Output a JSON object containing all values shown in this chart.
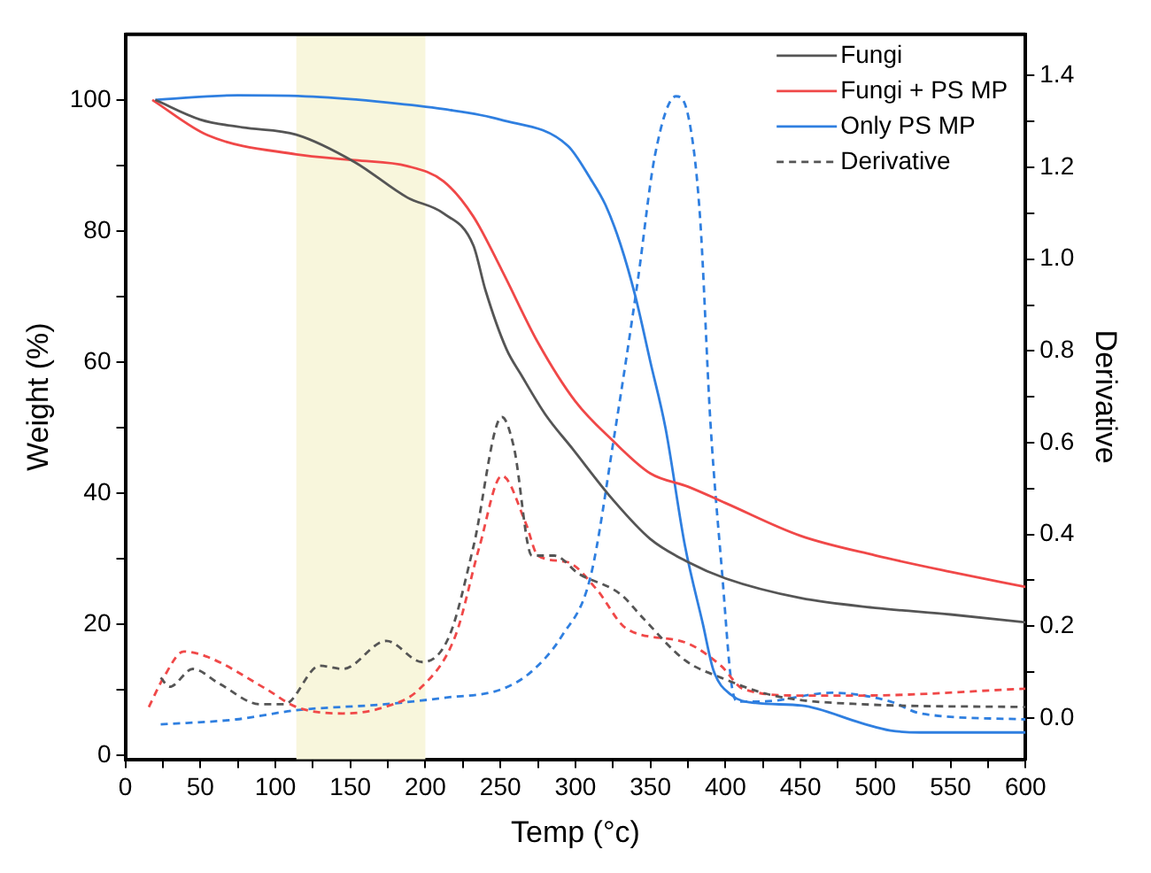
{
  "chart_data": {
    "type": "line",
    "xlabel": "Temp (°c)",
    "ylabel": "Weight (%)",
    "y2label": "Derivative",
    "xlim": [
      0,
      600
    ],
    "ylim": [
      -0.6,
      110
    ],
    "y2lim": [
      -0.09,
      1.49
    ],
    "xticks": [
      0,
      {
        "value": 25,
        "label": null
      },
      50,
      {
        "value": 75,
        "label": null
      },
      100,
      {
        "value": 125,
        "label": null
      },
      150,
      {
        "value": 175,
        "label": null
      },
      200,
      {
        "value": 225,
        "label": null
      },
      250,
      {
        "value": 275,
        "label": null
      },
      300,
      {
        "value": 325,
        "label": null
      },
      350,
      {
        "value": 375,
        "label": null
      },
      400,
      {
        "value": 425,
        "label": null
      },
      450,
      {
        "value": 475,
        "label": null
      },
      500,
      {
        "value": 525,
        "label": null
      },
      550,
      {
        "value": 575,
        "label": null
      },
      600
    ],
    "yticks": [
      0,
      {
        "value": 10,
        "label": null
      },
      20,
      {
        "value": 30,
        "label": null
      },
      40,
      {
        "value": 50,
        "label": null
      },
      60,
      {
        "value": 70,
        "label": null
      },
      80,
      {
        "value": 90,
        "label": null
      },
      100
    ],
    "y2ticks": [
      {
        "value": 0,
        "label": "0.0"
      },
      {
        "value": 0.1,
        "label": null
      },
      0.2,
      {
        "value": 0.3,
        "label": null
      },
      0.4,
      {
        "value": 0.5,
        "label": null
      },
      0.6,
      {
        "value": 0.7,
        "label": null
      },
      0.8,
      {
        "value": 0.9,
        "label": null
      },
      {
        "value": 1,
        "label": "1.0"
      },
      {
        "value": 1.1,
        "label": null
      },
      1.2,
      {
        "value": 1.3,
        "label": null
      },
      1.4
    ],
    "grid": false,
    "legend": "top right",
    "marker": "none",
    "bands": [
      {
        "axis": "x",
        "from": 114,
        "to": 200,
        "color": "#f8f6dc"
      }
    ],
    "series": [
      {
        "name": "Fungi",
        "color": "#555555",
        "line_style": "solid",
        "x": [
          20,
          50,
          78,
          114,
          153,
          188,
          212,
          232,
          240,
          254,
          264,
          280,
          298,
          325,
          350,
          375,
          400,
          450,
          500,
          550,
          600
        ],
        "values": [
          100,
          97,
          95.8,
          94.7,
          90.5,
          85.1,
          82.7,
          77.8,
          71,
          62,
          58,
          52,
          46.8,
          39,
          33,
          29.5,
          27,
          24,
          22.5,
          21.5,
          20.3
        ]
      },
      {
        "name": "Fungi + PS MP",
        "color": "#f04848",
        "line_style": "solid",
        "x": [
          18,
          55,
          114,
          153,
          188,
          212,
          232,
          251,
          275,
          300,
          325,
          350,
          375,
          400,
          450,
          500,
          550,
          600
        ],
        "values": [
          100,
          94.6,
          91.7,
          90.8,
          89.9,
          87.6,
          82.2,
          74,
          63,
          54,
          48,
          43,
          41,
          38.5,
          33.5,
          30.5,
          28,
          25.7
        ]
      },
      {
        "name": "Only PS MP",
        "color": "#2f7fe0",
        "line_style": "solid",
        "x": [
          20,
          75,
          125,
          175,
          212,
          250,
          295,
          310,
          320,
          330,
          340,
          350,
          360,
          373,
          385,
          392,
          404,
          420,
          451,
          491,
          510,
          530,
          600
        ],
        "values": [
          100,
          100.7,
          100.5,
          99.6,
          98.6,
          97,
          93,
          88,
          84,
          78,
          70,
          60,
          50,
          32,
          20,
          13,
          9.2,
          8,
          7.6,
          4.9,
          3.8,
          3.5,
          3.5
        ]
      },
      {
        "name": "Derivative",
        "color": "#555555",
        "line_style": "dashed",
        "axis": "y2",
        "x": [
          23.6,
          29.5,
          45,
          62.6,
          90,
          106,
          129.6,
          145,
          174,
          198,
          216,
          232,
          251,
          259,
          271,
          286,
          302,
          330,
          345,
          373,
          397,
          432,
          491,
          600
        ],
        "values": [
          0.088,
          0.068,
          0.107,
          0.075,
          0.03,
          0.03,
          0.114,
          0.107,
          0.168,
          0.122,
          0.179,
          0.373,
          0.656,
          0.59,
          0.354,
          0.354,
          0.315,
          0.27,
          0.218,
          0.126,
          0.088,
          0.049,
          0.03,
          0.024
        ]
      },
      {
        "color": "#f04848",
        "line_style": "dashed",
        "axis": "y2",
        "x": [
          15.7,
          25.5,
          39,
          55,
          94,
          114,
          145,
          173,
          196,
          220,
          236,
          251,
          267,
          275,
          294.5,
          314,
          334,
          373,
          397,
          412,
          451,
          491,
          600
        ],
        "values": [
          0.024,
          0.088,
          0.145,
          0.133,
          0.063,
          0.024,
          0.01,
          0.024,
          0.063,
          0.179,
          0.373,
          0.528,
          0.424,
          0.354,
          0.34,
          0.281,
          0.195,
          0.165,
          0.114,
          0.063,
          0.049,
          0.049,
          0.064
        ]
      },
      {
        "color": "#2f7fe0",
        "line_style": "dashed",
        "axis": "y2",
        "x": [
          23.6,
          74,
          114,
          173,
          212,
          251,
          271,
          291,
          310,
          326,
          341.6,
          353,
          367,
          375,
          383,
          390,
          398,
          404,
          408,
          424,
          471,
          510,
          530,
          600
        ],
        "values": [
          -0.014,
          -0.003,
          0.017,
          0.03,
          0.044,
          0.063,
          0.102,
          0.179,
          0.307,
          0.617,
          0.954,
          1.226,
          1.355,
          1.315,
          1.095,
          0.644,
          0.307,
          0.075,
          0.036,
          0.036,
          0.055,
          0.036,
          0.01,
          -0.003
        ]
      }
    ]
  }
}
